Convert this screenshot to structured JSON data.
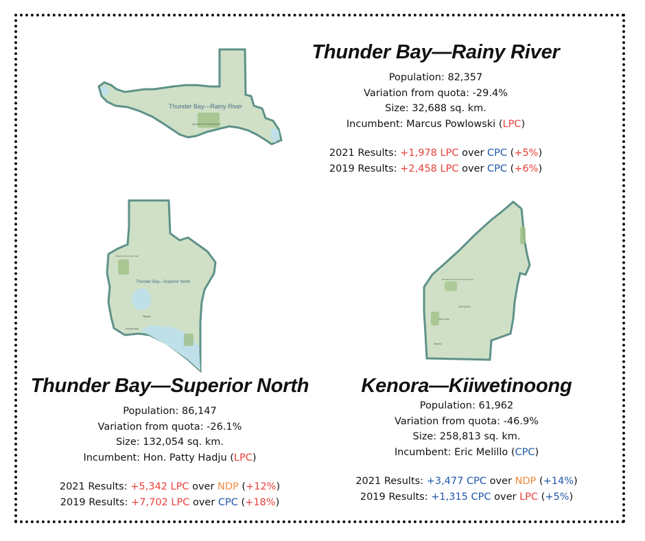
{
  "colors": {
    "lpc": "#e8403a",
    "cpc": "#1f57a8",
    "ndp": "#f08a3e",
    "land": "#cfe0c6",
    "border": "#5e9189",
    "water": "#bfe0e8",
    "park": "#9fbf86"
  },
  "districts": [
    {
      "name": "Thunder Bay—Rainy River",
      "map_label": "Thunder Bay—Rainy River",
      "map_sublabels": [
        "Quetico Provincial Park"
      ],
      "population": {
        "label": "Population:",
        "value": "82,357"
      },
      "variation": {
        "label": "Variation from quota:",
        "value": "-29.4%"
      },
      "size": {
        "label": "Size:",
        "value": "32,688 sq. km."
      },
      "incumbent": {
        "label": "Incumbent:",
        "name": "Marcus Powlowski",
        "open": "(",
        "party": "LPC",
        "close": ")"
      },
      "results": [
        {
          "label": "2021 Results:",
          "margin": "+1,978",
          "winner": "LPC",
          "over": "over",
          "runner_up": "CPC",
          "open": "(",
          "pct": "+5%",
          "close": ")"
        },
        {
          "label": "2019 Results:",
          "margin": "+2,458",
          "winner": "LPC",
          "over": "over",
          "runner_up": "CPC",
          "open": "(",
          "pct": "+6%",
          "close": ")"
        }
      ]
    },
    {
      "name": "Thunder Bay—Superior North",
      "map_label": "Thunder Bay—Superior North",
      "map_sublabels": [
        "Wabakimi Provincial Park",
        "Nipigon",
        "Thunder Bay"
      ],
      "population": {
        "label": "Population:",
        "value": "86,147"
      },
      "variation": {
        "label": "Variation from quota:",
        "value": "-26.1%"
      },
      "size": {
        "label": "Size:",
        "value": "132,054 sq. km."
      },
      "incumbent": {
        "label": "Incumbent:",
        "name": "Hon. Patty Hadju",
        "open": "(",
        "party": "LPC",
        "close": ")"
      },
      "results": [
        {
          "label": "2021 Results:",
          "margin": "+5,342",
          "winner": "LPC",
          "over": "over",
          "runner_up": "NDP",
          "open": "(",
          "pct": "+12%",
          "close": ")"
        },
        {
          "label": "2019 Results:",
          "margin": "+7,702",
          "winner": "LPC",
          "over": "over",
          "runner_up": "CPC",
          "open": "(",
          "pct": "+18%",
          "close": ")"
        }
      ]
    },
    {
      "name": "Kenora—Kiiwetinoong",
      "map_label": "ONTARIO",
      "map_sublabels": [
        "Woodland Caribou Provincial Park",
        "Red Lake",
        "Kenora"
      ],
      "population": {
        "label": "Population:",
        "value": "61,962"
      },
      "variation": {
        "label": "Variation from quota:",
        "value": "-46.9%"
      },
      "size": {
        "label": "Size:",
        "value": "258,813 sq. km."
      },
      "incumbent": {
        "label": "Incumbent:",
        "name": "Eric Melillo",
        "open": "(",
        "party": "CPC",
        "close": ")"
      },
      "results": [
        {
          "label": "2021 Results:",
          "margin": "+3,477",
          "winner": "CPC",
          "over": "over",
          "runner_up": "NDP",
          "open": "(",
          "pct": "+14%",
          "close": ")"
        },
        {
          "label": "2019 Results:",
          "margin": "+1,315",
          "winner": "CPC",
          "over": "over",
          "runner_up": "LPC",
          "open": "(",
          "pct": "+5%",
          "close": ")"
        }
      ]
    }
  ]
}
